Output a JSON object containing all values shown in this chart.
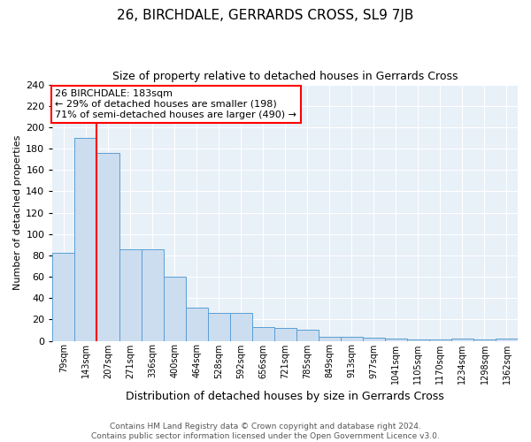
{
  "title": "26, BIRCHDALE, GERRARDS CROSS, SL9 7JB",
  "subtitle": "Size of property relative to detached houses in Gerrards Cross",
  "xlabel": "Distribution of detached houses by size in Gerrards Cross",
  "ylabel": "Number of detached properties",
  "bin_labels": [
    "79sqm",
    "143sqm",
    "207sqm",
    "271sqm",
    "336sqm",
    "400sqm",
    "464sqm",
    "528sqm",
    "592sqm",
    "656sqm",
    "721sqm",
    "785sqm",
    "849sqm",
    "913sqm",
    "977sqm",
    "1041sqm",
    "1105sqm",
    "1170sqm",
    "1234sqm",
    "1298sqm",
    "1362sqm"
  ],
  "bar_heights": [
    82,
    190,
    176,
    86,
    86,
    60,
    31,
    26,
    26,
    13,
    12,
    10,
    4,
    4,
    3,
    2,
    1,
    1,
    2,
    1,
    2
  ],
  "bar_color": "#ccddf0",
  "bar_edge_color": "#5a9fd4",
  "red_line_x": 1.5,
  "annotation_text": "26 BIRCHDALE: 183sqm\n← 29% of detached houses are smaller (198)\n71% of semi-detached houses are larger (490) →",
  "footer_line1": "Contains HM Land Registry data © Crown copyright and database right 2024.",
  "footer_line2": "Contains public sector information licensed under the Open Government Licence v3.0.",
  "ylim": [
    0,
    240
  ],
  "yticks": [
    0,
    20,
    40,
    60,
    80,
    100,
    120,
    140,
    160,
    180,
    200,
    220,
    240
  ],
  "plot_bg_color": "#e8f0f8",
  "grid_color": "#ffffff",
  "title_fontsize": 11,
  "subtitle_fontsize": 9,
  "ylabel_fontsize": 8,
  "xlabel_fontsize": 9,
  "tick_fontsize": 7,
  "annotation_fontsize": 8,
  "footer_fontsize": 6.5
}
